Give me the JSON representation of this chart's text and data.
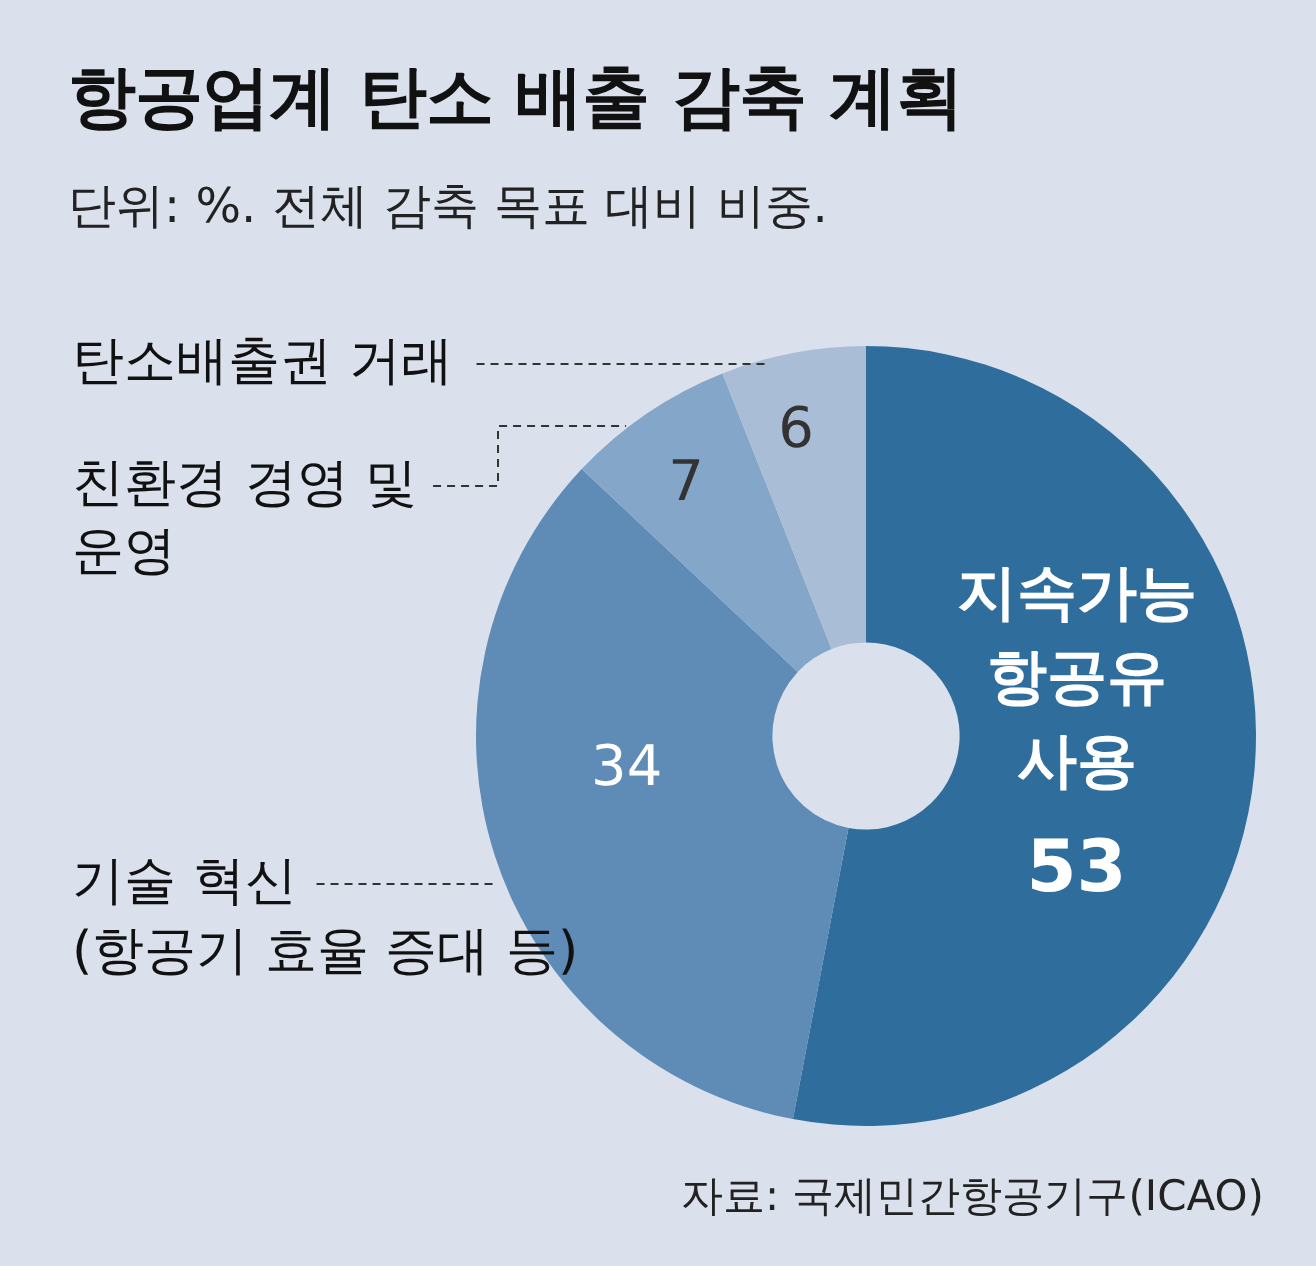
{
  "chart_data": {
    "type": "donut",
    "title": "항공업계 탄소 배출 감축 계획",
    "subtitle": "단위: %. 전체 감축 목표 대비 비중.",
    "categories": [
      "지속가능\n항공유\n사용",
      "기술 혁신\n(항공기 효율 증대 등)",
      "친환경 경영 및\n운영",
      "탄소배출권 거래"
    ],
    "values": [
      53,
      34,
      7,
      6
    ],
    "colors": [
      "#2e6d9c",
      "#5f8bb7",
      "#84a6c9",
      "#a9bdd6"
    ],
    "data_labels": true,
    "legend": false,
    "annotations": [
      "자료: 국제민간항공기구(ICAO)"
    ]
  }
}
